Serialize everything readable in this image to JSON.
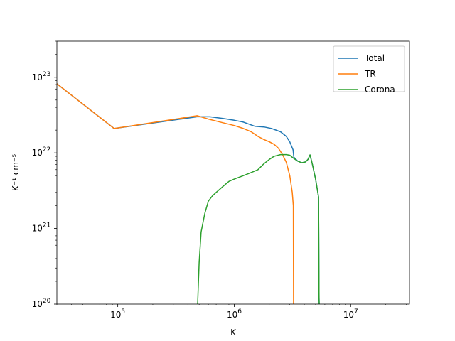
{
  "chart_data": {
    "type": "line",
    "xlabel": "K",
    "ylabel": "K⁻¹ cm⁻⁵",
    "xscale": "log",
    "yscale": "log",
    "xlim": [
      30000,
      32000000
    ],
    "ylim": [
      1e+20,
      3e+23
    ],
    "grid": false,
    "legend_position": "top-right",
    "x_major_ticks": [
      {
        "value": 100000,
        "base": "10",
        "exp": "5"
      },
      {
        "value": 1000000,
        "base": "10",
        "exp": "6"
      },
      {
        "value": 10000000,
        "base": "10",
        "exp": "7"
      }
    ],
    "y_major_ticks": [
      {
        "value": 1e+20,
        "base": "10",
        "exp": "20"
      },
      {
        "value": 1e+21,
        "base": "10",
        "exp": "21"
      },
      {
        "value": 1e+22,
        "base": "10",
        "exp": "22"
      },
      {
        "value": 1e+23,
        "base": "10",
        "exp": "23"
      }
    ],
    "series": [
      {
        "name": "Total",
        "color": "#1f77b4",
        "x": [
          30000,
          93000,
          480000,
          620000,
          800000,
          1000000,
          1200000,
          1500000,
          1800000,
          2100000,
          2500000,
          2800000,
          3000000,
          3200000,
          3250000,
          3500000,
          3800000,
          4100000,
          4300000,
          4480000,
          4700000,
          5000000,
          5300000,
          5350000,
          5370000
        ],
        "y": [
          8.2e+22,
          2.1e+22,
          3e+22,
          3e+22,
          2.85e+22,
          2.7e+22,
          2.55e+22,
          2.25e+22,
          2.2e+22,
          2.1e+22,
          1.9e+22,
          1.65e+22,
          1.4e+22,
          1.1e+22,
          8.8e+21,
          7.8e+21,
          7.4e+21,
          7.6e+21,
          8.2e+21,
          9.4e+21,
          7e+21,
          4.5e+21,
          2.6e+21,
          1.2e+20,
          1e+20
        ]
      },
      {
        "name": "TR",
        "color": "#ff7f0e",
        "x": [
          30000,
          93000,
          480000,
          600000,
          800000,
          1000000,
          1200000,
          1400000,
          1600000,
          1800000,
          2000000,
          2200000,
          2400000,
          2600000,
          2800000,
          3000000,
          3150000,
          3220000,
          3230000
        ],
        "y": [
          8.2e+22,
          2.1e+22,
          3.1e+22,
          2.8e+22,
          2.5e+22,
          2.3e+22,
          2.1e+22,
          1.9e+22,
          1.65e+22,
          1.5e+22,
          1.4e+22,
          1.3e+22,
          1.15e+22,
          9.5e+21,
          7.5e+21,
          5e+21,
          3e+21,
          2e+21,
          1e+20
        ]
      },
      {
        "name": "Corona",
        "color": "#2ca02c",
        "x": [
          485000,
          500000,
          520000,
          560000,
          600000,
          650000,
          700000,
          800000,
          900000,
          1000000,
          1200000,
          1400000,
          1600000,
          1800000,
          2000000,
          2200000,
          2500000,
          2800000,
          3000000,
          3200000,
          3500000,
          3800000,
          4100000,
          4300000,
          4480000,
          4700000,
          5000000,
          5300000,
          5350000,
          5370000
        ],
        "y": [
          1e+20,
          3.5e+20,
          9e+20,
          1.6e+21,
          2.3e+21,
          2.7e+21,
          3e+21,
          3.6e+21,
          4.2e+21,
          4.5e+21,
          5e+21,
          5.5e+21,
          6e+21,
          7.2e+21,
          8.2e+21,
          9e+21,
          9.5e+21,
          9.5e+21,
          9.3e+21,
          8.6e+21,
          7.8e+21,
          7.4e+21,
          7.6e+21,
          8.2e+21,
          9.4e+21,
          7e+21,
          4.5e+21,
          2.6e+21,
          1.2e+20,
          1e+20
        ]
      }
    ]
  }
}
